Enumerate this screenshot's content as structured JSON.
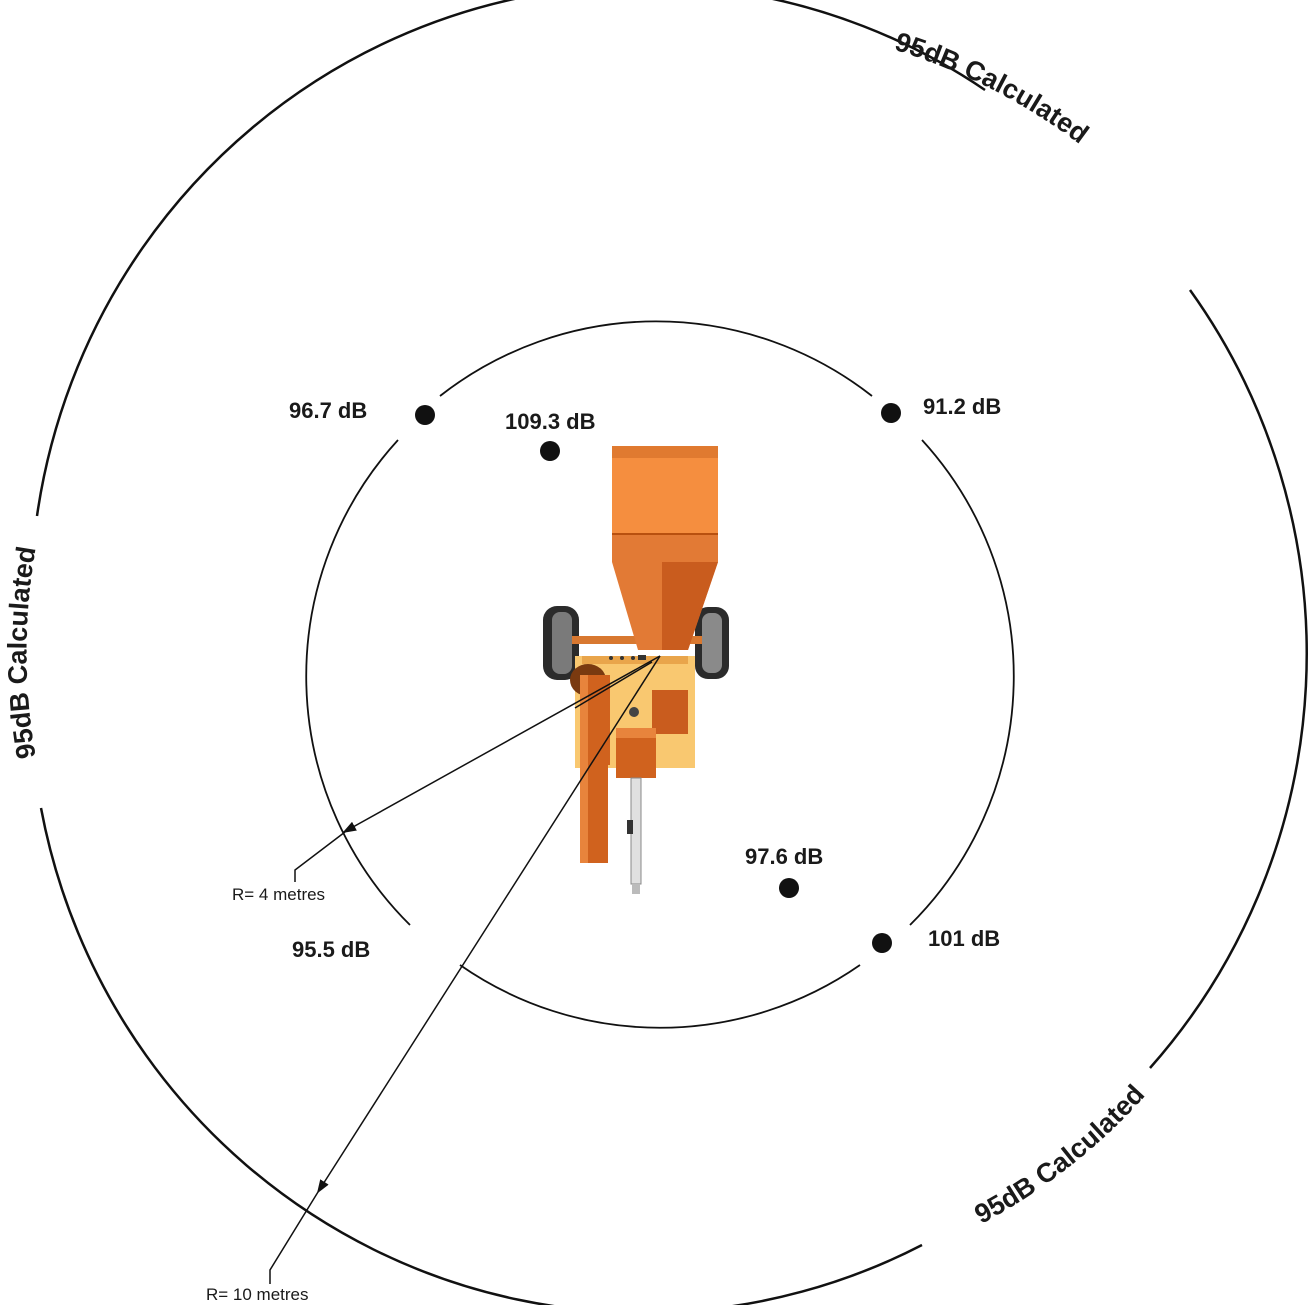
{
  "rings": {
    "outer_label": "95dB Calculated"
  },
  "readings": [
    {
      "label": "96.7 dB"
    },
    {
      "label": "109.3 dB"
    },
    {
      "label": "91.2 dB"
    },
    {
      "label": "97.6 dB"
    },
    {
      "label": "101 dB"
    },
    {
      "label": "95.5 dB"
    }
  ],
  "radii": {
    "inner": "R= 4 metres",
    "outer": "R= 10 metres"
  },
  "colors": {
    "machine_orange": "#F58E3F",
    "machine_dark_orange": "#C95C1E",
    "machine_light": "#F9C870",
    "machine_deep": "#B8500F",
    "tire": "#2b2b2b",
    "line": "#111111"
  }
}
